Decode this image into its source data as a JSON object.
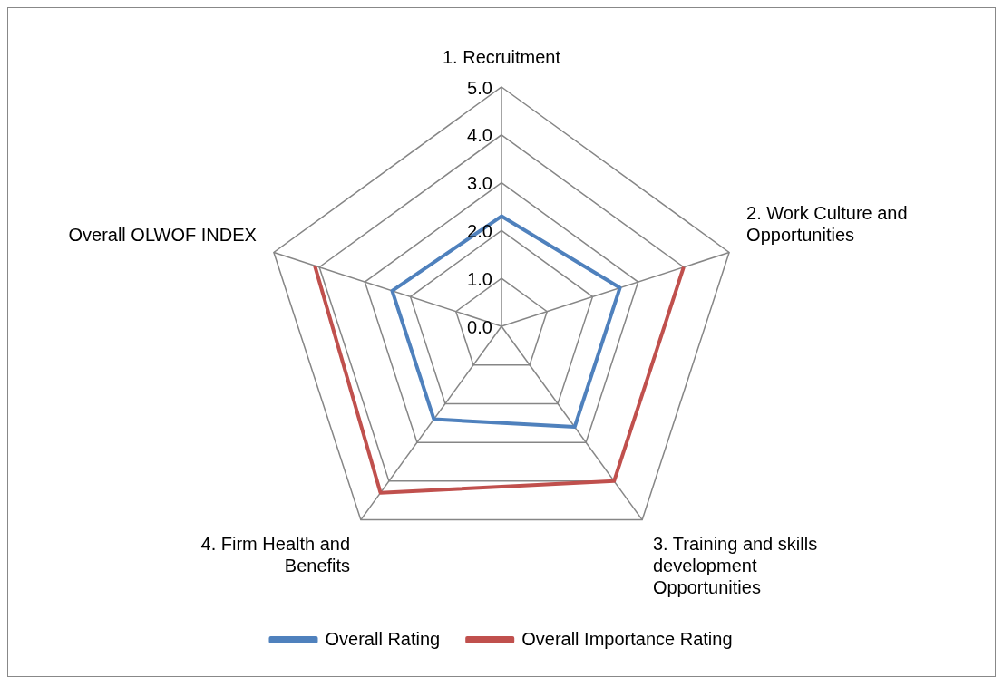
{
  "chart_data": {
    "type": "radar",
    "categories": [
      "1. Recruitment",
      "2. Work Culture and Opportunities",
      "3. Training and skills development Opportunities",
      "4. Firm Health and Benefits",
      "Overall OLWOF INDEX"
    ],
    "series": [
      {
        "name": "Overall Rating",
        "color": "#4f81bd",
        "values": [
          2.3,
          2.6,
          2.6,
          2.4,
          2.4
        ]
      },
      {
        "name": "Overall Importance Rating",
        "color": "#c0504d",
        "values": [
          null,
          4.0,
          4.0,
          4.3,
          4.1
        ]
      }
    ],
    "ylim": [
      0,
      5
    ],
    "yticks": [
      {
        "value": 0,
        "label": "0.0"
      },
      {
        "value": 1,
        "label": "1.0"
      },
      {
        "value": 2,
        "label": "2.0"
      },
      {
        "value": 3,
        "label": "3.0"
      },
      {
        "value": 4,
        "label": "4.0"
      },
      {
        "value": 5,
        "label": "5.0"
      }
    ],
    "grid": true,
    "legend": "bottom",
    "marker": "none"
  }
}
